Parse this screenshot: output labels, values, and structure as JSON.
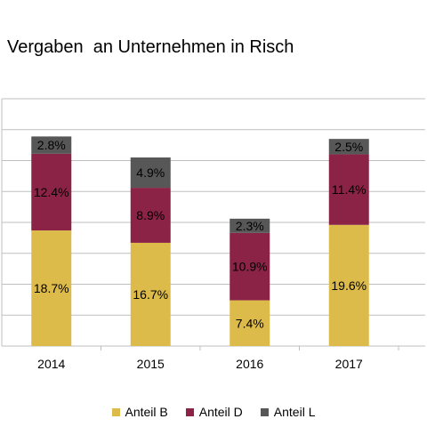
{
  "chart_data": {
    "type": "bar",
    "stacked": true,
    "title": "Vergaben  an Unternehmen in Risch",
    "xlabel": "",
    "ylabel": "",
    "categories": [
      "2014",
      "2015",
      "2016",
      "2017"
    ],
    "ylim": [
      0,
      40
    ],
    "grid": true,
    "legend_position": "bottom",
    "series": [
      {
        "name": "Anteil B",
        "color": "#DDBB4A",
        "values": [
          18.7,
          16.7,
          7.4,
          19.6
        ],
        "labels": [
          "18.7%",
          "16.7%",
          "7.4%",
          "19.6%"
        ]
      },
      {
        "name": "Anteil D",
        "color": "#8B2347",
        "values": [
          12.4,
          8.9,
          10.9,
          11.4
        ],
        "labels": [
          "12.4%",
          "8.9%",
          "10.9%",
          "11.4%"
        ]
      },
      {
        "name": "Anteil L",
        "color": "#575757",
        "values": [
          2.8,
          4.9,
          2.3,
          2.5
        ],
        "labels": [
          "2.8%",
          "4.9%",
          "2.3%",
          "2.5%"
        ]
      }
    ]
  }
}
